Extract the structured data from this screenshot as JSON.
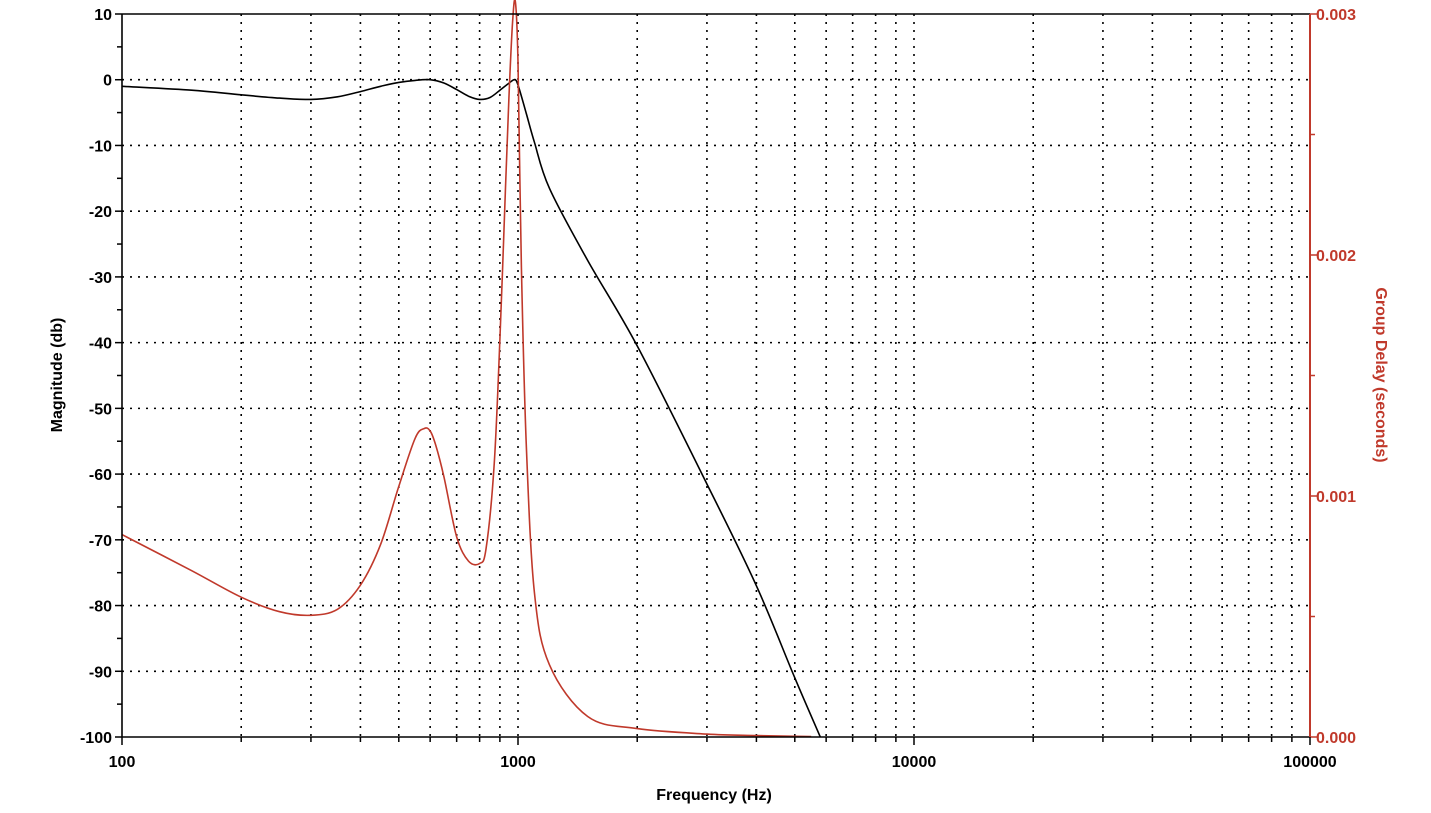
{
  "chart_data": {
    "type": "line",
    "xlabel": "Frequency (Hz)",
    "ylabel": "Magnitude (db)",
    "y2label": "Group Delay (seconds)",
    "x_scale": "log",
    "xlim": [
      100,
      100000
    ],
    "ylim": [
      -100,
      10
    ],
    "y2lim": [
      0,
      0.003
    ],
    "x_ticks": [
      "100",
      "1000",
      "10000",
      "100000"
    ],
    "y_ticks": [
      "10",
      "0",
      "-10",
      "-20",
      "-30",
      "-40",
      "-50",
      "-60",
      "-70",
      "-80",
      "-90",
      "-100"
    ],
    "y2_ticks": [
      "0.003",
      "0.002",
      "0.001",
      "0.000"
    ],
    "grid": true,
    "colors": {
      "magnitude": "#000000",
      "group_delay": "#c0392b",
      "grid": "#000000"
    },
    "series": [
      {
        "axis": "left",
        "x": [
          100,
          150,
          200,
          250,
          300,
          350,
          400,
          450,
          500,
          550,
          600,
          650,
          700,
          750,
          800,
          850,
          900,
          950,
          980,
          1000,
          1050,
          1100,
          1200,
          1500,
          2000,
          3000,
          4000,
          5000,
          5800
        ],
        "values": [
          -1.0,
          -1.6,
          -2.3,
          -2.8,
          -3.0,
          -2.6,
          -1.8,
          -1.0,
          -0.4,
          -0.1,
          0.0,
          -0.5,
          -1.5,
          -2.5,
          -3.0,
          -2.7,
          -1.6,
          -0.5,
          0.0,
          -0.8,
          -5.2,
          -9.5,
          -16.5,
          -27.5,
          -40.5,
          -61.5,
          -77.0,
          -91.0,
          -100.0
        ]
      },
      {
        "axis": "right",
        "x": [
          100,
          150,
          200,
          250,
          300,
          350,
          400,
          450,
          500,
          550,
          580,
          600,
          620,
          650,
          700,
          750,
          800,
          830,
          870,
          900,
          930,
          950,
          970,
          985,
          1000,
          1020,
          1050,
          1100,
          1200,
          1500,
          2000,
          3000,
          4000,
          5000,
          5500
        ],
        "values": [
          0.00084,
          0.00069,
          0.00058,
          0.00052,
          0.000505,
          0.00053,
          0.00063,
          0.0008,
          0.00104,
          0.00124,
          0.00128,
          0.00127,
          0.00121,
          0.00108,
          0.00083,
          0.00073,
          0.00072,
          0.00078,
          0.00112,
          0.00165,
          0.00228,
          0.00268,
          0.00298,
          0.00305,
          0.0028,
          0.00195,
          0.0012,
          0.0006,
          0.0003,
          8.5e-05,
          3.5e-05,
          1.2e-05,
          6e-06,
          3e-06,
          2e-06
        ]
      }
    ]
  }
}
